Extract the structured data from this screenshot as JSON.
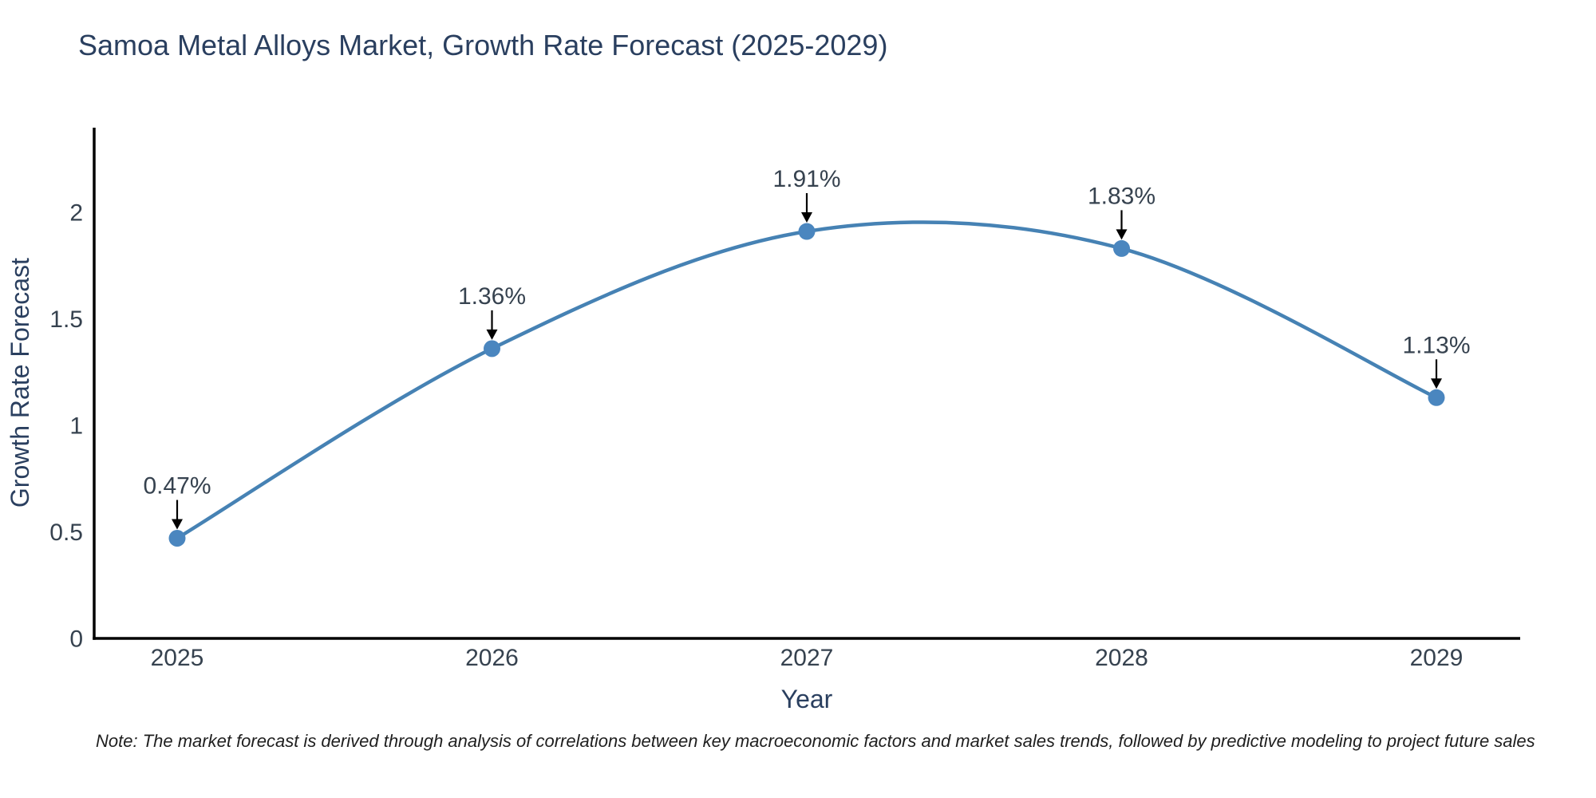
{
  "title": "Samoa Metal Alloys Market, Growth Rate Forecast (2025-2029)",
  "note": "Note: The market forecast is derived through analysis of correlations between key macroeconomic factors and market sales trends, followed by predictive modeling to project future sales",
  "chart_data": {
    "type": "line",
    "title": "Samoa Metal Alloys Market, Growth Rate Forecast (2025-2029)",
    "xlabel": "Year",
    "ylabel": "Growth Rate Forecast",
    "categories": [
      "2025",
      "2026",
      "2027",
      "2028",
      "2029"
    ],
    "series": [
      {
        "name": "Growth Rate Forecast",
        "values": [
          0.47,
          1.36,
          1.91,
          1.83,
          1.13
        ]
      }
    ],
    "point_labels": [
      "0.47%",
      "1.36%",
      "1.91%",
      "1.83%",
      "1.13%"
    ],
    "ytick_values": [
      0,
      0.5,
      1,
      1.5,
      2
    ],
    "ytick_labels": [
      "0",
      "0.5",
      "1",
      "1.5",
      "2"
    ],
    "ylim": [
      0,
      2.4
    ],
    "grid": false,
    "legend": false,
    "line_shape": "spline",
    "annotations_have_arrows": true,
    "colors": {
      "line": "#4682b4",
      "marker": "#4a86bf",
      "axis": "#000000",
      "title_text": "#2a3f5f",
      "tick_text": "#36424f",
      "annotation_text": "#36424f",
      "arrow": "#000000",
      "note_text": "#1f1f1f",
      "background": "#ffffff"
    }
  }
}
